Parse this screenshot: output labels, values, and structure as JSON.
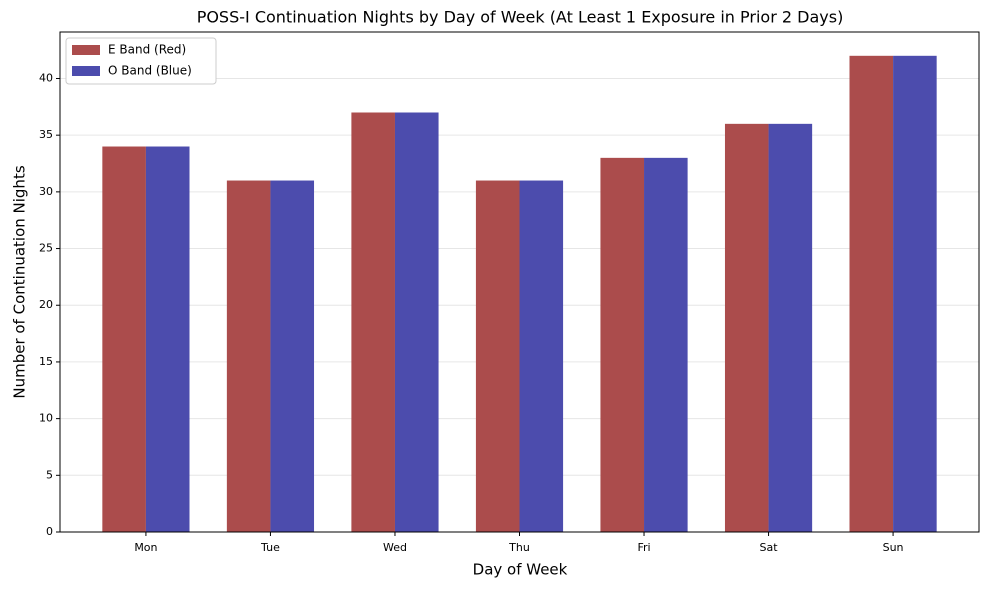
{
  "chart_data": {
    "type": "bar",
    "title": "POSS-I Continuation Nights by Day of Week (At Least 1 Exposure in Prior 2 Days)",
    "x_label": "Day of Week",
    "y_label": "Number of Continuation Nights",
    "categories": [
      "Mon",
      "Tue",
      "Wed",
      "Thu",
      "Fri",
      "Sat",
      "Sun"
    ],
    "series": [
      {
        "name": "E Band (Red)",
        "color": "#ab4c4c",
        "values": [
          34,
          31,
          37,
          31,
          33,
          36,
          42
        ]
      },
      {
        "name": "O Band (Blue)",
        "color": "#4c4cad",
        "values": [
          34,
          31,
          37,
          31,
          33,
          36,
          42
        ]
      }
    ],
    "ylim": [
      0,
      44.1
    ],
    "yticks": [
      0,
      5,
      10,
      15,
      20,
      25,
      30,
      35,
      40
    ],
    "grid": true,
    "legend": "upper-left"
  }
}
